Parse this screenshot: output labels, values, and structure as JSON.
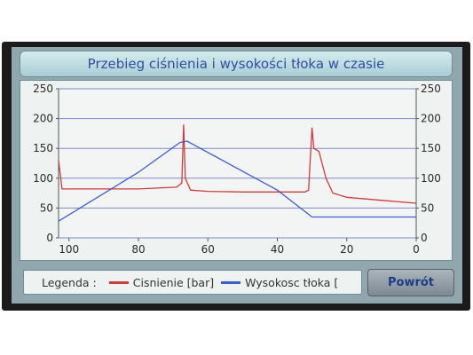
{
  "title": "Przebieg ciśnienia i wysokości tłoka w czasie",
  "legend": {
    "label": "Legenda :",
    "items": [
      {
        "label": "Cisnienie [bar]",
        "color": "#d23a3a"
      },
      {
        "label": "Wysokosc tłoka [",
        "color": "#3a5fd2"
      }
    ]
  },
  "back_button": "Powrót",
  "chart_data": {
    "type": "line",
    "y_ticks": [
      "250",
      "200",
      "150",
      "100",
      "50",
      "0"
    ],
    "y_ticks_right": [
      "250",
      "200",
      "150",
      "100",
      "50",
      "0"
    ],
    "x_ticks": [
      "100",
      "80",
      "60",
      "40",
      "20",
      "0"
    ],
    "xlim": [
      100,
      0
    ],
    "ylim": [
      0,
      250
    ],
    "grid": true,
    "series": [
      {
        "name": "Cisnienie [bar]",
        "color": "#d23a3a",
        "points": [
          [
            103,
            130
          ],
          [
            102,
            82
          ],
          [
            80,
            82
          ],
          [
            69,
            85
          ],
          [
            67.5,
            92
          ],
          [
            67,
            190
          ],
          [
            66.5,
            100
          ],
          [
            65,
            80
          ],
          [
            60,
            78
          ],
          [
            50,
            77
          ],
          [
            40,
            77
          ],
          [
            32,
            77
          ],
          [
            31,
            80
          ],
          [
            30,
            185
          ],
          [
            29.5,
            150
          ],
          [
            28,
            145
          ],
          [
            26,
            100
          ],
          [
            24,
            75
          ],
          [
            20,
            68
          ],
          [
            10,
            63
          ],
          [
            0,
            58
          ]
        ]
      },
      {
        "name": "Wysokosc tłoka [",
        "color": "#3a5fd2",
        "points": [
          [
            103,
            28
          ],
          [
            80,
            110
          ],
          [
            68,
            160
          ],
          [
            66,
            162
          ],
          [
            40,
            80
          ],
          [
            30,
            35
          ],
          [
            0,
            35
          ]
        ]
      }
    ]
  }
}
